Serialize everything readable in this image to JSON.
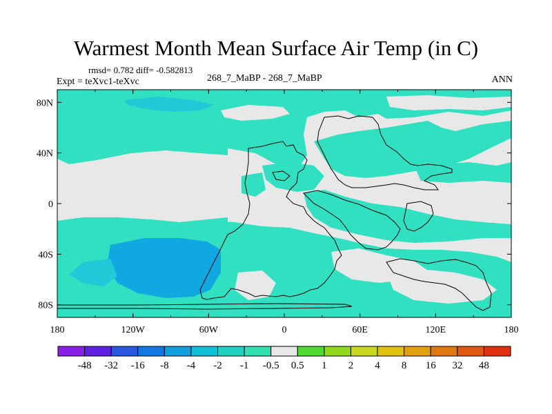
{
  "title": "Warmest Month Mean Surface Air Temp (in C)",
  "stats": "rmsd= 0.782 diff= -0.582813",
  "experiment": "Expt = teXvc1-teXvc",
  "center_label": "268_7_MaBP - 268_7_MaBP",
  "period": "ANN",
  "colors": {
    "land_neutral": "#e8e8e8",
    "cyan_light": "#30e0c0",
    "cyan_mid": "#20c8d8",
    "blue_mid": "#10a8e0"
  },
  "map": {
    "lon_ticks": [
      "180",
      "120W",
      "60W",
      "0",
      "60E",
      "120E",
      "180"
    ],
    "lat_ticks": [
      "80N",
      "40N",
      "0",
      "40S",
      "80S"
    ]
  },
  "colorbar": {
    "colors": [
      "#8820e8",
      "#6020e0",
      "#2858e0",
      "#1078e0",
      "#10a0e0",
      "#10c0d8",
      "#20d0c0",
      "#30e0b0",
      "#e8e8e8",
      "#50d830",
      "#90d820",
      "#c8d820",
      "#e0c010",
      "#e0a010",
      "#e07810",
      "#e05810",
      "#e03010"
    ],
    "labels": [
      "-48",
      "-32",
      "-16",
      "-8",
      "-4",
      "-2",
      "-1",
      "-0.5",
      "0.5",
      "1",
      "2",
      "4",
      "8",
      "16",
      "32",
      "48"
    ]
  }
}
